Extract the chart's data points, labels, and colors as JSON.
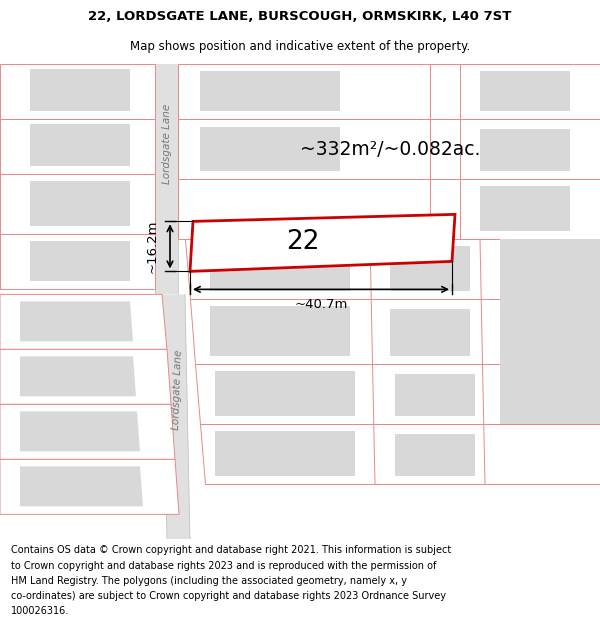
{
  "title_line1": "22, LORDSGATE LANE, BURSCOUGH, ORMSKIRK, L40 7ST",
  "title_line2": "Map shows position and indicative extent of the property.",
  "area_text": "~332m²/~0.082ac.",
  "plot_number": "22",
  "dim_width": "~40.7m",
  "dim_height": "~16.2m",
  "footer_lines": [
    "Contains OS data © Crown copyright and database right 2021. This information is subject",
    "to Crown copyright and database rights 2023 and is reproduced with the permission of",
    "HM Land Registry. The polygons (including the associated geometry, namely x, y",
    "co-ordinates) are subject to Crown copyright and database rights 2023 Ordnance Survey",
    "100026316."
  ],
  "map_bg": "#f7f7f7",
  "road_fill": "#e8e8e8",
  "plot_edge_color": "#cc0000",
  "plot_fill": "#ffffff",
  "building_fill": "#d8d8d8",
  "building_edge": "#e08080",
  "lot_edge": "#e08080",
  "street_label": "Lordsgate Lane",
  "title_fontsize": 9.5,
  "subtitle_fontsize": 8.5,
  "footer_fontsize": 7.0
}
